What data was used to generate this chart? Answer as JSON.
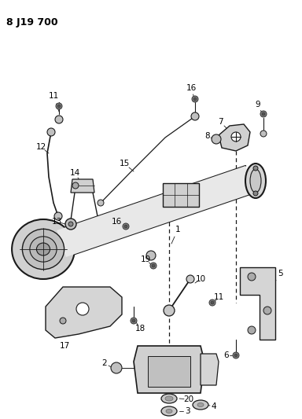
{
  "title": "8 J19 700",
  "bg_color": "#ffffff",
  "line_color": "#1a1a1a",
  "text_color": "#000000",
  "fig_width": 3.84,
  "fig_height": 5.33,
  "dpi": 100
}
